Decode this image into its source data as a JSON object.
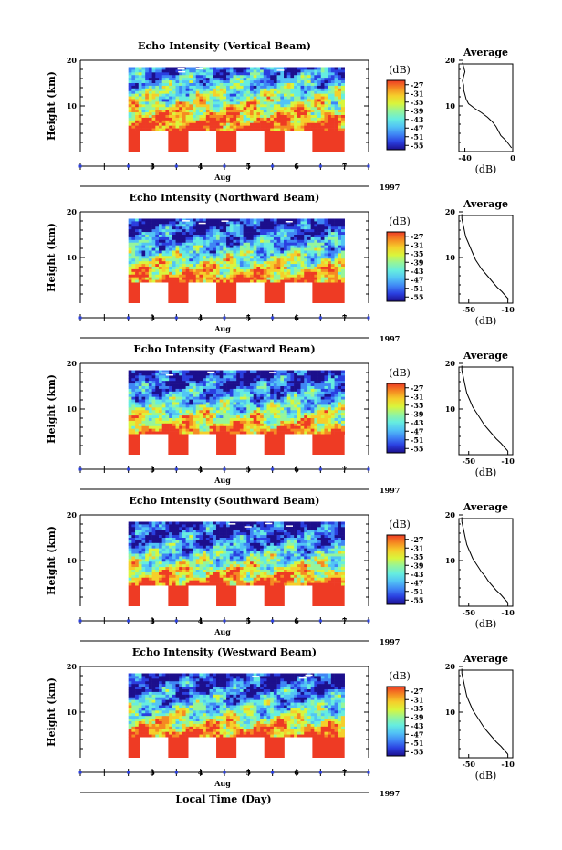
{
  "colormap": [
    "#1c0f8c",
    "#2a3fe0",
    "#3f86f5",
    "#52c4f5",
    "#66eddf",
    "#95f59a",
    "#d9f53c",
    "#f5cf2b",
    "#f58a22",
    "#ee3b24"
  ],
  "blanking_color": "#ee3b24",
  "bottom_xlabel": "Local Time (Day)",
  "chart_data": [
    {
      "type": "heatmap",
      "title": "Echo Intensity (Vertical Beam)",
      "ylabel": "Height (km)",
      "ylim": [
        0,
        20
      ],
      "yticks": [
        10,
        20
      ],
      "xlim": [
        1.5,
        7.5
      ],
      "xticks": [
        3,
        4,
        5,
        6,
        7
      ],
      "xlabel": "Aug",
      "year": "1997",
      "data_xrange": [
        2.5,
        7.0
      ],
      "data_yrange": [
        4.5,
        18.5
      ],
      "blanked_intervals": [
        [
          2.75,
          3.33
        ],
        [
          3.75,
          4.33
        ],
        [
          4.75,
          5.33
        ],
        [
          5.75,
          6.33
        ]
      ],
      "blank_top_km": 4.5,
      "colorbar": {
        "unit": "(dB)",
        "ticks": [
          -27,
          -31,
          -35,
          -39,
          -43,
          -47,
          -51,
          -55
        ],
        "range": [
          -57,
          -25
        ]
      },
      "profile": {
        "title": "Average",
        "xlabel": "(dB)",
        "xlim": [
          -45,
          0
        ],
        "xticks": [
          -40,
          0
        ],
        "height_km": [
          0.8,
          1.5,
          2.5,
          3.5,
          4.5,
          5.5,
          6.5,
          7.5,
          8.5,
          9.5,
          10.5,
          11.5,
          12.5,
          13.5,
          14.5,
          15.5,
          16.5,
          17.5,
          18.5,
          19.5
        ],
        "value_db": [
          -1,
          -3,
          -6,
          -10,
          -12,
          -14,
          -17,
          -21,
          -26,
          -32,
          -37,
          -39,
          -40,
          -41,
          -41,
          -42,
          -41,
          -40,
          -41,
          -42
        ]
      }
    },
    {
      "type": "heatmap",
      "title": "Echo Intensity (Northward Beam)",
      "ylabel": "Height (km)",
      "ylim": [
        0,
        20
      ],
      "yticks": [
        10,
        20
      ],
      "xlim": [
        1.5,
        7.5
      ],
      "xticks": [
        3,
        4,
        5,
        6,
        7
      ],
      "xlabel": "Aug",
      "year": "1997",
      "data_xrange": [
        2.5,
        7.0
      ],
      "data_yrange": [
        4.5,
        18.5
      ],
      "blanked_intervals": [
        [
          2.75,
          3.33
        ],
        [
          3.75,
          4.33
        ],
        [
          4.75,
          5.33
        ],
        [
          5.75,
          6.33
        ]
      ],
      "blank_top_km": 4.5,
      "colorbar": {
        "unit": "(dB)",
        "ticks": [
          -27,
          -31,
          -35,
          -39,
          -43,
          -47,
          -51,
          -55
        ],
        "range": [
          -57,
          -25
        ]
      },
      "profile": {
        "title": "Average",
        "xlabel": "(dB)",
        "xlim": [
          -60,
          -5
        ],
        "xticks": [
          -50,
          -10
        ],
        "height_km": [
          0.8,
          1.5,
          2.5,
          3.5,
          4.5,
          5.5,
          6.5,
          7.5,
          8.5,
          9.5,
          10.5,
          11.5,
          12.5,
          13.5,
          14.5,
          15.5,
          16.5,
          17.5,
          18.5,
          19.5
        ],
        "value_db": [
          -9,
          -12,
          -16,
          -21,
          -25,
          -29,
          -33,
          -37,
          -40,
          -43,
          -45,
          -47,
          -49,
          -51,
          -53,
          -54,
          -55,
          -56,
          -57,
          -57
        ]
      }
    },
    {
      "type": "heatmap",
      "title": "Echo Intensity (Eastward Beam)",
      "ylabel": "Height (km)",
      "ylim": [
        0,
        20
      ],
      "yticks": [
        10,
        20
      ],
      "xlim": [
        1.5,
        7.5
      ],
      "xticks": [
        3,
        4,
        5,
        6,
        7
      ],
      "xlabel": "Aug",
      "year": "1997",
      "data_xrange": [
        2.5,
        7.0
      ],
      "data_yrange": [
        4.5,
        18.5
      ],
      "blanked_intervals": [
        [
          2.75,
          3.33
        ],
        [
          3.75,
          4.33
        ],
        [
          4.75,
          5.33
        ],
        [
          5.75,
          6.33
        ]
      ],
      "blank_top_km": 4.5,
      "colorbar": {
        "unit": "(dB)",
        "ticks": [
          -27,
          -31,
          -35,
          -39,
          -43,
          -47,
          -51,
          -55
        ],
        "range": [
          -57,
          -25
        ]
      },
      "profile": {
        "title": "Average",
        "xlabel": "(dB)",
        "xlim": [
          -60,
          -5
        ],
        "xticks": [
          -50,
          -10
        ],
        "height_km": [
          0.8,
          1.5,
          2.5,
          3.5,
          4.5,
          5.5,
          6.5,
          7.5,
          8.5,
          9.5,
          10.5,
          11.5,
          12.5,
          13.5,
          14.5,
          15.5,
          16.5,
          17.5,
          18.5,
          19.5
        ],
        "value_db": [
          -10,
          -13,
          -17,
          -22,
          -26,
          -30,
          -34,
          -37,
          -40,
          -43,
          -46,
          -48,
          -50,
          -52,
          -53,
          -54,
          -55,
          -56,
          -57,
          -57
        ]
      }
    },
    {
      "type": "heatmap",
      "title": "Echo Intensity (Southward Beam)",
      "ylabel": "Height (km)",
      "ylim": [
        0,
        20
      ],
      "yticks": [
        10,
        20
      ],
      "xlim": [
        1.5,
        7.5
      ],
      "xticks": [
        3,
        4,
        5,
        6,
        7
      ],
      "xlabel": "Aug",
      "year": "1997",
      "data_xrange": [
        2.5,
        7.0
      ],
      "data_yrange": [
        4.5,
        18.5
      ],
      "blanked_intervals": [
        [
          2.75,
          3.33
        ],
        [
          3.75,
          4.33
        ],
        [
          4.75,
          5.33
        ],
        [
          5.75,
          6.33
        ]
      ],
      "blank_top_km": 4.5,
      "colorbar": {
        "unit": "(dB)",
        "ticks": [
          -27,
          -31,
          -35,
          -39,
          -43,
          -47,
          -51,
          -55
        ],
        "range": [
          -57,
          -25
        ]
      },
      "profile": {
        "title": "Average",
        "xlabel": "(dB)",
        "xlim": [
          -60,
          -5
        ],
        "xticks": [
          -50,
          -10
        ],
        "height_km": [
          0.8,
          1.5,
          2.5,
          3.5,
          4.5,
          5.5,
          6.5,
          7.5,
          8.5,
          9.5,
          10.5,
          11.5,
          12.5,
          13.5,
          14.5,
          15.5,
          16.5,
          17.5,
          18.5,
          19.5
        ],
        "value_db": [
          -10,
          -13,
          -17,
          -22,
          -26,
          -30,
          -33,
          -37,
          -40,
          -43,
          -46,
          -48,
          -50,
          -52,
          -53,
          -54,
          -55,
          -56,
          -57,
          -57
        ]
      }
    },
    {
      "type": "heatmap",
      "title": "Echo Intensity (Westward Beam)",
      "ylabel": "Height (km)",
      "ylim": [
        0,
        20
      ],
      "yticks": [
        10,
        20
      ],
      "xlim": [
        1.5,
        7.5
      ],
      "xticks": [
        3,
        4,
        5,
        6,
        7
      ],
      "xlabel": "Aug",
      "year": "1997",
      "data_xrange": [
        2.5,
        7.0
      ],
      "data_yrange": [
        4.5,
        18.5
      ],
      "blanked_intervals": [
        [
          2.75,
          3.33
        ],
        [
          3.75,
          4.33
        ],
        [
          4.75,
          5.33
        ],
        [
          5.75,
          6.33
        ]
      ],
      "blank_top_km": 4.5,
      "colorbar": {
        "unit": "(dB)",
        "ticks": [
          -27,
          -31,
          -35,
          -39,
          -43,
          -47,
          -51,
          -55
        ],
        "range": [
          -57,
          -25
        ]
      },
      "profile": {
        "title": "Average",
        "xlabel": "(dB)",
        "xlim": [
          -60,
          -5
        ],
        "xticks": [
          -50,
          -10
        ],
        "height_km": [
          0.8,
          1.5,
          2.5,
          3.5,
          4.5,
          5.5,
          6.5,
          7.5,
          8.5,
          9.5,
          10.5,
          11.5,
          12.5,
          13.5,
          14.5,
          15.5,
          16.5,
          17.5,
          18.5,
          19.5
        ],
        "value_db": [
          -10,
          -13,
          -17,
          -22,
          -26,
          -30,
          -34,
          -37,
          -40,
          -43,
          -46,
          -48,
          -50,
          -52,
          -53,
          -54,
          -55,
          -56,
          -57,
          -57
        ]
      }
    }
  ]
}
